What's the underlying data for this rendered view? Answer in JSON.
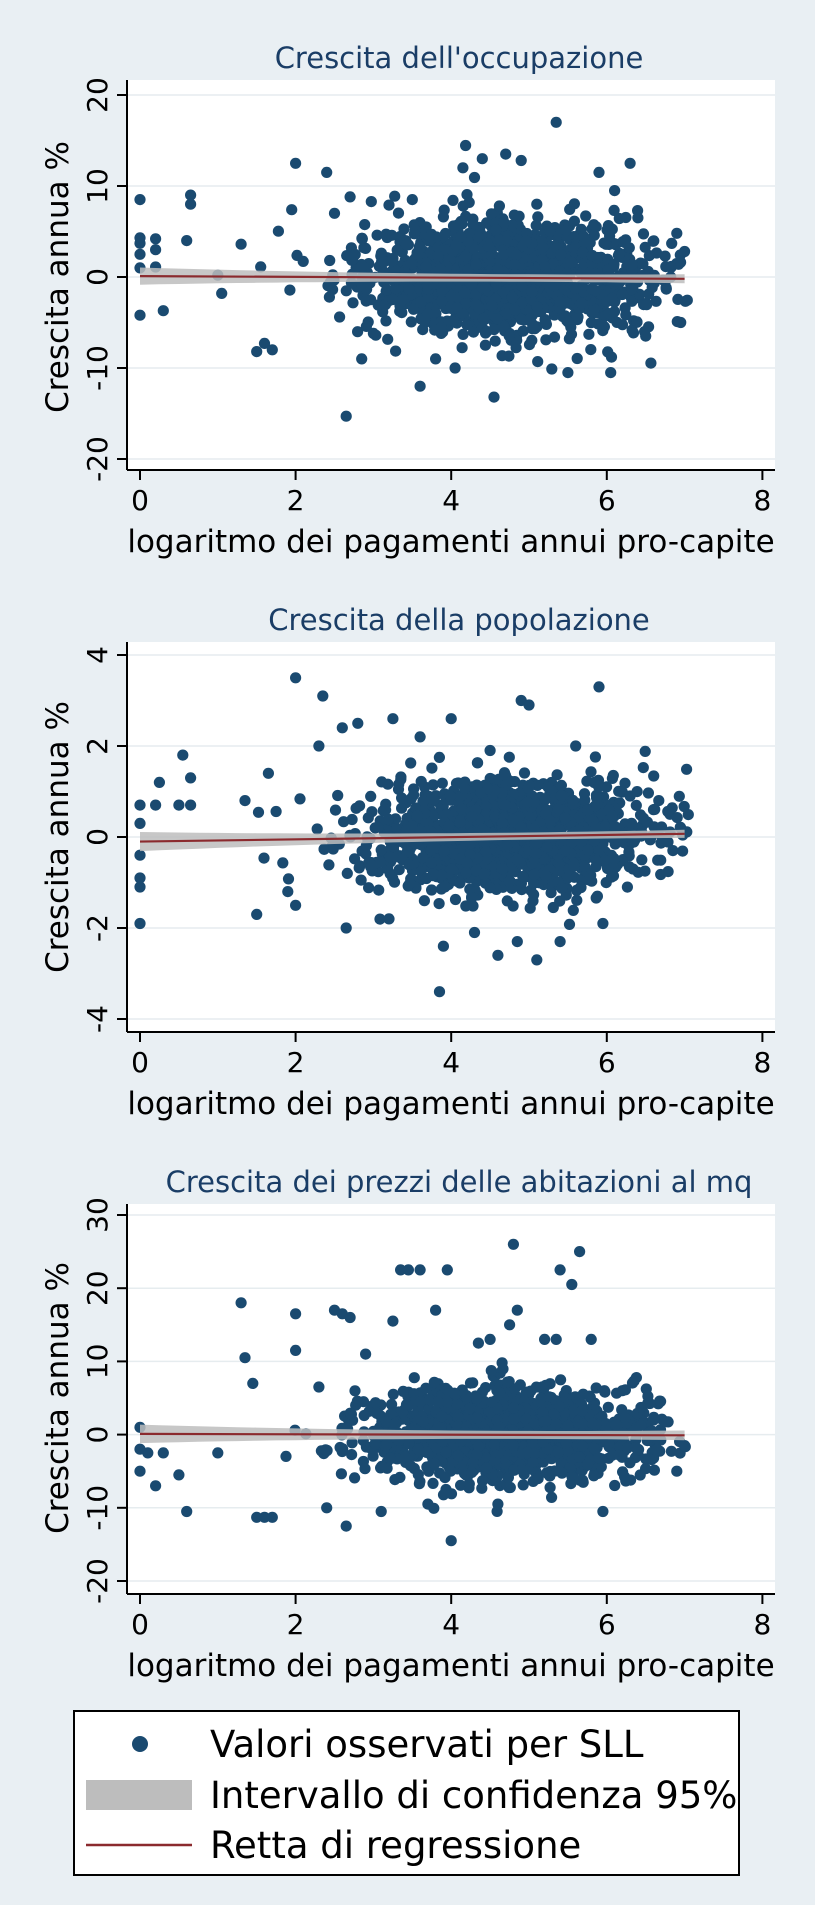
{
  "chart_data": [
    {
      "type": "scatter",
      "title": "Crescita dell'occupazione",
      "xlabel": "logaritmo dei pagamenti annui pro-capite",
      "ylabel": "Crescita annua %",
      "xlim": [
        0,
        8
      ],
      "ylim": [
        -20,
        20
      ],
      "xticks": [
        "0",
        "2",
        "4",
        "6",
        "8"
      ],
      "yticks": [
        "-20",
        "-10",
        "0",
        "10",
        "20"
      ],
      "grid": true,
      "regression_line": {
        "x": [
          0,
          7
        ],
        "y": [
          0.1,
          -0.2
        ]
      },
      "confidence_band_halfwidth": [
        0.9,
        0.15,
        0.45
      ],
      "points": [
        [
          0.0,
          8.5
        ],
        [
          0.0,
          4.3
        ],
        [
          0.0,
          3.7
        ],
        [
          0.0,
          2.5
        ],
        [
          0.0,
          1.0
        ],
        [
          0.0,
          -4.2
        ],
        [
          0.2,
          4.2
        ],
        [
          0.2,
          3.0
        ],
        [
          0.2,
          1.1
        ],
        [
          0.3,
          -3.7
        ],
        [
          0.6,
          4.0
        ],
        [
          0.65,
          9.0
        ],
        [
          0.65,
          8.0
        ],
        [
          1.0,
          0.2
        ],
        [
          1.05,
          -1.8
        ],
        [
          1.3,
          3.6
        ],
        [
          1.5,
          -8.2
        ],
        [
          1.6,
          -7.3
        ],
        [
          1.7,
          -8.0
        ],
        [
          1.95,
          7.4
        ],
        [
          2.0,
          12.5
        ],
        [
          2.4,
          11.5
        ],
        [
          2.5,
          7.0
        ],
        [
          2.65,
          -15.3
        ],
        [
          2.7,
          8.8
        ],
        [
          2.85,
          -9.0
        ],
        [
          3.0,
          -6.2
        ],
        [
          3.2,
          7.9
        ],
        [
          3.5,
          8.5
        ],
        [
          3.6,
          -12.0
        ],
        [
          3.8,
          -9.0
        ],
        [
          3.9,
          6.6
        ],
        [
          4.05,
          -10.0
        ],
        [
          4.15,
          12.0
        ],
        [
          4.4,
          13.0
        ],
        [
          4.55,
          -13.2
        ],
        [
          4.7,
          13.5
        ],
        [
          4.9,
          12.8
        ],
        [
          5.1,
          8.0
        ],
        [
          5.35,
          17.0
        ],
        [
          5.5,
          -10.5
        ],
        [
          5.9,
          11.5
        ],
        [
          6.05,
          -10.5
        ],
        [
          6.1,
          9.5
        ],
        [
          6.3,
          12.5
        ],
        [
          6.4,
          6.5
        ],
        [
          6.5,
          -6.5
        ],
        [
          6.75,
          2.3
        ],
        [
          6.9,
          4.8
        ],
        [
          6.95,
          -5.0
        ],
        [
          7.0,
          2.8
        ]
      ],
      "cloud": {
        "center": [
          4.7,
          0.0
        ],
        "spread": [
          0.9,
          3.8
        ],
        "count": 1500
      }
    },
    {
      "type": "scatter",
      "title": "Crescita della popolazione",
      "xlabel": "logaritmo dei pagamenti annui pro-capite",
      "ylabel": "Crescita annua %",
      "xlim": [
        0,
        8
      ],
      "ylim": [
        -4,
        4
      ],
      "xticks": [
        "0",
        "2",
        "4",
        "6",
        "8"
      ],
      "yticks": [
        "-4",
        "-2",
        "0",
        "2",
        "4"
      ],
      "grid": true,
      "regression_line": {
        "x": [
          0,
          7
        ],
        "y": [
          -0.1,
          0.07
        ]
      },
      "confidence_band_halfwidth": [
        0.2,
        0.03,
        0.08
      ],
      "points": [
        [
          0.0,
          0.7
        ],
        [
          0.0,
          0.3
        ],
        [
          0.0,
          -0.4
        ],
        [
          0.0,
          -0.9
        ],
        [
          0.0,
          -1.1
        ],
        [
          0.0,
          -1.9
        ],
        [
          0.2,
          0.7
        ],
        [
          0.25,
          1.2
        ],
        [
          0.5,
          0.7
        ],
        [
          0.55,
          1.8
        ],
        [
          0.65,
          1.3
        ],
        [
          0.65,
          0.7
        ],
        [
          1.35,
          0.8
        ],
        [
          1.5,
          -1.7
        ],
        [
          1.65,
          1.4
        ],
        [
          1.9,
          -1.2
        ],
        [
          2.0,
          -1.5
        ],
        [
          2.0,
          3.5
        ],
        [
          2.3,
          2.0
        ],
        [
          2.35,
          3.1
        ],
        [
          2.6,
          2.4
        ],
        [
          2.65,
          -2.0
        ],
        [
          2.8,
          2.5
        ],
        [
          3.2,
          -1.8
        ],
        [
          3.25,
          2.6
        ],
        [
          3.6,
          2.2
        ],
        [
          3.85,
          -3.4
        ],
        [
          3.9,
          -2.4
        ],
        [
          4.0,
          2.6
        ],
        [
          4.3,
          -2.1
        ],
        [
          4.5,
          1.9
        ],
        [
          4.6,
          -2.6
        ],
        [
          4.85,
          -2.3
        ],
        [
          4.9,
          3.0
        ],
        [
          5.0,
          2.9
        ],
        [
          5.1,
          -2.7
        ],
        [
          5.4,
          -2.3
        ],
        [
          5.6,
          2.0
        ],
        [
          5.9,
          3.3
        ],
        [
          5.95,
          -1.9
        ],
        [
          6.3,
          0.9
        ],
        [
          6.45,
          -0.5
        ],
        [
          6.6,
          0.6
        ],
        [
          6.85,
          -0.3
        ],
        [
          6.95,
          0.2
        ]
      ],
      "cloud": {
        "center": [
          4.7,
          0.0
        ],
        "spread": [
          0.9,
          0.75
        ],
        "count": 1500
      }
    },
    {
      "type": "scatter",
      "title": "Crescita dei prezzi delle abitazioni al mq",
      "xlabel": "logaritmo dei pagamenti annui pro-capite",
      "ylabel": "Crescita annua %",
      "xlim": [
        0,
        8
      ],
      "ylim": [
        -20,
        30
      ],
      "xticks": [
        "0",
        "2",
        "4",
        "6",
        "8"
      ],
      "yticks": [
        "-20",
        "-10",
        "0",
        "10",
        "20",
        "30"
      ],
      "grid": true,
      "regression_line": {
        "x": [
          0,
          7
        ],
        "y": [
          0.1,
          -0.1
        ]
      },
      "confidence_band_halfwidth": [
        1.2,
        0.2,
        0.6
      ],
      "points": [
        [
          0.0,
          1.0
        ],
        [
          0.0,
          -2.0
        ],
        [
          0.0,
          -5.0
        ],
        [
          0.1,
          -2.5
        ],
        [
          0.2,
          -7.0
        ],
        [
          0.3,
          -2.5
        ],
        [
          0.5,
          -5.5
        ],
        [
          0.6,
          -10.5
        ],
        [
          1.0,
          -2.5
        ],
        [
          1.3,
          18.0
        ],
        [
          1.35,
          10.5
        ],
        [
          1.45,
          7.0
        ],
        [
          1.5,
          -11.3
        ],
        [
          1.6,
          -11.3
        ],
        [
          1.7,
          -11.3
        ],
        [
          2.0,
          16.5
        ],
        [
          2.0,
          11.5
        ],
        [
          2.3,
          6.5
        ],
        [
          2.4,
          -10.0
        ],
        [
          2.5,
          17.0
        ],
        [
          2.6,
          16.5
        ],
        [
          2.65,
          -12.5
        ],
        [
          2.7,
          16.0
        ],
        [
          2.9,
          11.0
        ],
        [
          3.1,
          -10.5
        ],
        [
          3.25,
          15.5
        ],
        [
          3.35,
          22.5
        ],
        [
          3.45,
          22.5
        ],
        [
          3.6,
          22.5
        ],
        [
          3.7,
          -9.5
        ],
        [
          3.8,
          17.0
        ],
        [
          3.95,
          22.5
        ],
        [
          4.0,
          -14.5
        ],
        [
          4.35,
          12.5
        ],
        [
          4.5,
          13.0
        ],
        [
          4.6,
          -9.5
        ],
        [
          4.75,
          15.0
        ],
        [
          4.8,
          26.0
        ],
        [
          4.85,
          17.0
        ],
        [
          5.2,
          13.0
        ],
        [
          5.35,
          13.0
        ],
        [
          5.4,
          22.5
        ],
        [
          5.55,
          20.5
        ],
        [
          5.65,
          25.0
        ],
        [
          5.8,
          13.0
        ],
        [
          5.95,
          -10.5
        ],
        [
          6.2,
          6.0
        ],
        [
          6.6,
          2.0
        ],
        [
          6.9,
          -5.0
        ],
        [
          7.0,
          -1.5
        ]
      ],
      "cloud": {
        "center": [
          4.7,
          0.0
        ],
        "spread": [
          0.9,
          3.8
        ],
        "count": 1500
      }
    }
  ],
  "legend": {
    "placement": "bottom",
    "items": [
      {
        "label": "Valori osservati per SLL",
        "symbol": "marker"
      },
      {
        "label": "Intervallo di confidenza 95%",
        "symbol": "band"
      },
      {
        "label": "Retta di regressione",
        "symbol": "line"
      }
    ]
  },
  "colors": {
    "background": "#e9eff3",
    "plot_area": "#ffffff",
    "marker": "#1a4a70",
    "band": "#bdbdbd",
    "regression_line": "#8b2a2e",
    "grid": "#e6ecef",
    "title": "#1a3d66"
  }
}
